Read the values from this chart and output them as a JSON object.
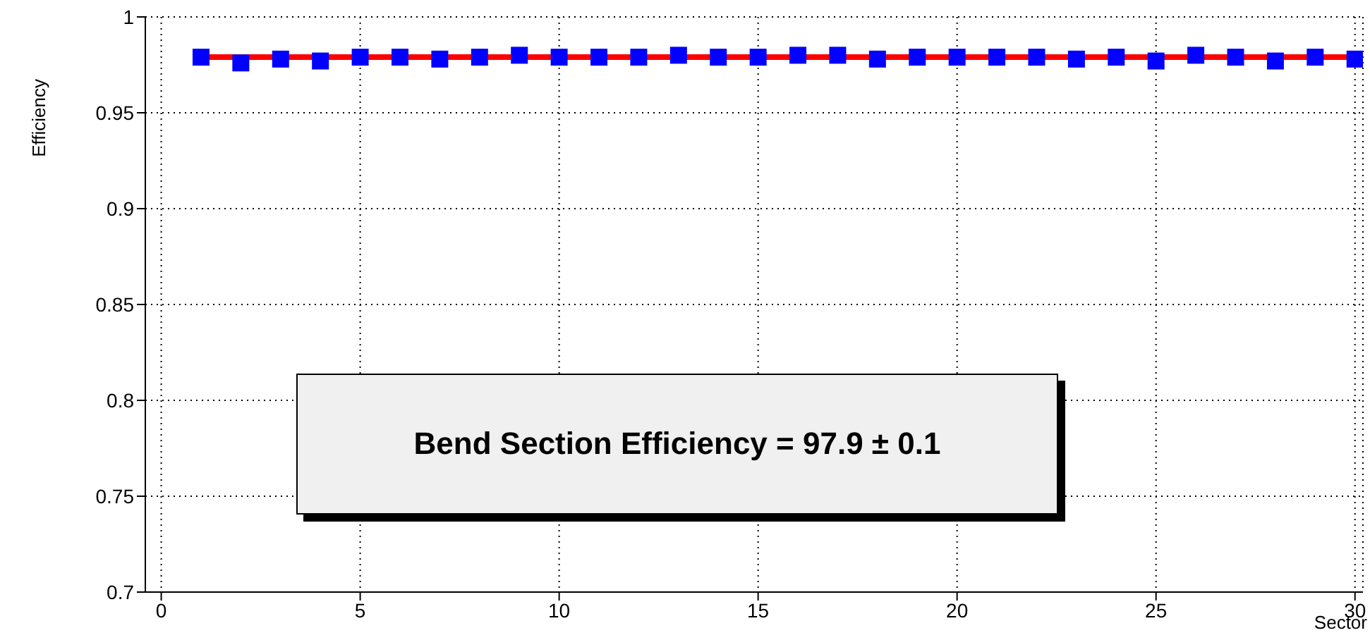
{
  "chart_data": {
    "type": "scatter",
    "ylabel": "Efficiency",
    "xlabel": "Sector",
    "annotations": [
      "Bend Section Efficiency = 97.9 ± 0.1"
    ],
    "xlim": [
      -0.4,
      30.2
    ],
    "xticks": [
      0,
      5,
      10,
      15,
      20,
      25,
      30
    ],
    "ylim": [
      0.7,
      1.0
    ],
    "yticks": [
      0.7,
      0.75,
      0.8,
      0.85,
      0.9,
      0.95,
      1
    ],
    "grid": true,
    "series": [
      {
        "color": "#0000ff",
        "marker": "square",
        "x": [
          1,
          2,
          3,
          4,
          5,
          6,
          7,
          8,
          9,
          10,
          11,
          12,
          13,
          14,
          15,
          16,
          17,
          18,
          19,
          20,
          21,
          22,
          23,
          24,
          25,
          26,
          27,
          28,
          29,
          30
        ],
        "values": [
          0.979,
          0.976,
          0.978,
          0.977,
          0.979,
          0.979,
          0.978,
          0.979,
          0.98,
          0.979,
          0.979,
          0.979,
          0.98,
          0.979,
          0.979,
          0.98,
          0.98,
          0.978,
          0.979,
          0.979,
          0.979,
          0.979,
          0.978,
          0.979,
          0.977,
          0.98,
          0.979,
          0.977,
          0.979,
          0.978
        ]
      },
      {
        "type": "line",
        "color": "#ff0000",
        "x": [
          1,
          30
        ],
        "values": [
          0.979,
          0.979
        ]
      }
    ]
  }
}
